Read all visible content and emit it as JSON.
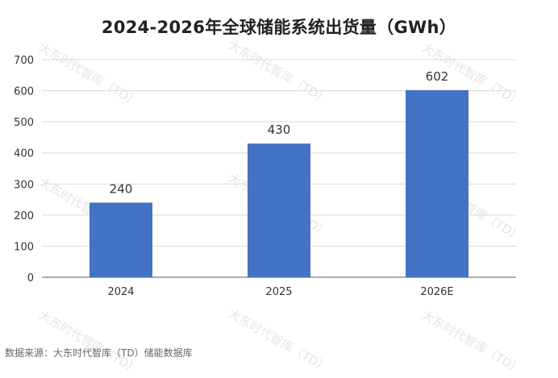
{
  "watermark_text": "大东时代智库（TD）",
  "source_note": "数据来源：大东时代智库（TD）储能数据库",
  "colors": {
    "bar": "#4472c4",
    "grid": "#d9d9d9",
    "axis": "#595959",
    "text": "#333333"
  },
  "chart_data": {
    "type": "bar",
    "title": "2024-2026年全球储能系统出货量（GWh）",
    "xlabel": "",
    "ylabel": "",
    "categories": [
      "2024",
      "2025",
      "2026E"
    ],
    "values": [
      240,
      430,
      602
    ],
    "data_labels": [
      "240",
      "430",
      "602"
    ],
    "ylim": [
      0,
      700
    ],
    "yticks": [
      "0",
      "100",
      "200",
      "300",
      "400",
      "500",
      "600",
      "700"
    ],
    "grid": true,
    "legend": "none"
  }
}
